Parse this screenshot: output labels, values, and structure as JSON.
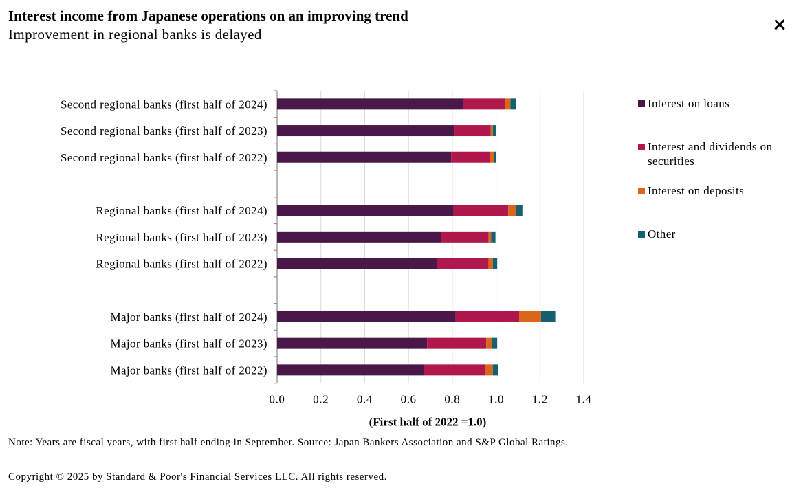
{
  "header": {
    "title": "Interest income from Japanese operations on an improving trend",
    "subtitle": "Improvement in regional banks is delayed"
  },
  "close_button": {
    "label": "×",
    "icon": "close-icon"
  },
  "chart_data": {
    "type": "bar",
    "orientation": "horizontal",
    "stacked": true,
    "categories": [
      "Second regional banks (first half of 2024)",
      "Second regional banks (first half of 2023)",
      "Second regional banks (first half of 2022)",
      "",
      "Regional banks (first half of 2024)",
      "Regional banks (first half of 2023)",
      "Regional banks (first half of 2022)",
      "",
      "Major banks (first half of 2024)",
      "Major banks (first half of 2023)",
      "Major banks (first half of 2022)"
    ],
    "series": [
      {
        "name": "Interest on loans",
        "color": "#4a1749",
        "values": [
          0.85,
          0.81,
          0.795,
          null,
          0.805,
          0.75,
          0.73,
          null,
          0.815,
          0.685,
          0.67
        ]
      },
      {
        "name": "Interest and dividends on securities",
        "color": "#b0174d",
        "values": [
          0.19,
          0.165,
          0.175,
          null,
          0.25,
          0.215,
          0.235,
          null,
          0.29,
          0.27,
          0.28
        ]
      },
      {
        "name": "Interest on deposits",
        "color": "#d9661a",
        "values": [
          0.025,
          0.01,
          0.02,
          null,
          0.035,
          0.012,
          0.02,
          null,
          0.1,
          0.025,
          0.035
        ]
      },
      {
        "name": "Other",
        "color": "#14606f",
        "values": [
          0.025,
          0.015,
          0.01,
          null,
          0.03,
          0.02,
          0.02,
          null,
          0.065,
          0.025,
          0.025
        ]
      }
    ],
    "xlim": [
      0,
      1.4
    ],
    "xticks": [
      "0.0",
      "0.2",
      "0.4",
      "0.6",
      "0.8",
      "1.0",
      "1.2",
      "1.4"
    ],
    "xlabel": "(First half of 2022 =1.0)",
    "ylabel": "",
    "grid": "vertical",
    "legend_position": "right"
  },
  "footer": {
    "note": "Note: Years are fiscal years, with first half ending in September. Source: Japan Bankers Association and S&P Global Ratings.",
    "copyright": "Copyright © 2025 by Standard & Poor's Financial Services LLC. All rights reserved."
  }
}
